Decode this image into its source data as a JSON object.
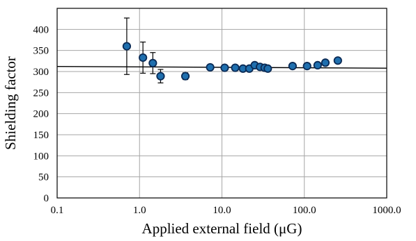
{
  "chart_data": {
    "type": "scatter",
    "title": "",
    "xlabel": "Applied external field (μG)",
    "ylabel": "Shielding factor",
    "x_scale": "log",
    "xlim": [
      0.1,
      1000
    ],
    "ylim": [
      0,
      450
    ],
    "grid": true,
    "legend": "none",
    "x_tick_labels": [
      "0.1",
      "1.0",
      "10.0",
      "100.0",
      "1000.0"
    ],
    "x_tick_values": [
      0.1,
      1,
      10,
      100,
      1000
    ],
    "y_tick_labels": [
      "0",
      "50",
      "100",
      "150",
      "200",
      "250",
      "300",
      "350",
      "400"
    ],
    "y_tick_values": [
      0,
      50,
      100,
      150,
      200,
      250,
      300,
      350,
      400
    ],
    "series": [
      {
        "marker": "circle",
        "color": "#1f6fae",
        "edge_color": "#0a2a55",
        "points": [
          {
            "x": 0.7,
            "y": 360,
            "err": 67
          },
          {
            "x": 1.1,
            "y": 333,
            "err": 37
          },
          {
            "x": 1.45,
            "y": 320,
            "err": 25
          },
          {
            "x": 1.8,
            "y": 289,
            "err": 16
          },
          {
            "x": 3.6,
            "y": 289,
            "err": 8
          },
          {
            "x": 7.2,
            "y": 310,
            "err": 4
          },
          {
            "x": 10.8,
            "y": 309,
            "err": 3
          },
          {
            "x": 14.5,
            "y": 309,
            "err": 3
          },
          {
            "x": 18,
            "y": 307,
            "err": 3
          },
          {
            "x": 21.5,
            "y": 307,
            "err": 3
          },
          {
            "x": 25,
            "y": 315,
            "err": 3
          },
          {
            "x": 29,
            "y": 311,
            "err": 3
          },
          {
            "x": 33,
            "y": 309,
            "err": 3
          },
          {
            "x": 36,
            "y": 307,
            "err": 3
          },
          {
            "x": 72,
            "y": 313,
            "err": 3
          },
          {
            "x": 108,
            "y": 313,
            "err": 3
          },
          {
            "x": 145,
            "y": 315,
            "err": 3
          },
          {
            "x": 180,
            "y": 321,
            "err": 3
          },
          {
            "x": 255,
            "y": 326,
            "err": 3
          }
        ]
      }
    ],
    "fit_line": {
      "x": [
        0.1,
        1000
      ],
      "y": [
        312,
        308
      ],
      "color": "#000000"
    }
  }
}
